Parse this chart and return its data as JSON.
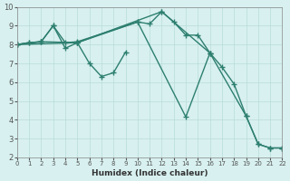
{
  "title": "",
  "xlabel": "Humidex (Indice chaleur)",
  "ylabel": "",
  "bg_color": "#d8f0f0",
  "line_color": "#2d7f6f",
  "grid_color": "#b8dcd8",
  "ylim": [
    2,
    10
  ],
  "xlim": [
    0,
    22
  ],
  "yticks": [
    2,
    3,
    4,
    5,
    6,
    7,
    8,
    9,
    10
  ],
  "xticks": [
    0,
    1,
    2,
    3,
    4,
    5,
    6,
    7,
    8,
    9,
    10,
    11,
    12,
    13,
    14,
    15,
    16,
    17,
    18,
    19,
    20,
    21,
    22
  ],
  "s1_x": [
    0,
    1,
    2,
    3,
    4,
    5,
    10,
    11,
    12,
    13,
    14,
    15,
    16
  ],
  "s1_y": [
    8.0,
    8.1,
    8.15,
    9.0,
    8.1,
    8.15,
    9.2,
    9.1,
    9.75,
    9.2,
    8.5,
    8.5,
    7.55
  ],
  "s2_x": [
    0,
    1,
    2,
    3,
    4,
    5,
    6,
    7,
    8,
    9
  ],
  "s2_y": [
    8.0,
    8.1,
    8.15,
    9.0,
    7.8,
    8.1,
    7.0,
    6.3,
    6.5,
    7.6
  ],
  "s3_x": [
    0,
    2,
    5,
    12,
    16,
    19,
    20,
    21,
    22
  ],
  "s3_y": [
    8.0,
    8.15,
    8.1,
    9.75,
    7.55,
    4.2,
    2.7,
    2.5,
    2.5
  ],
  "s4_x": [
    0,
    5,
    10,
    14,
    16,
    17,
    18,
    19,
    20,
    21,
    22
  ],
  "s4_y": [
    8.0,
    8.1,
    9.2,
    4.15,
    7.55,
    6.8,
    5.9,
    4.2,
    2.7,
    2.5,
    2.5
  ]
}
